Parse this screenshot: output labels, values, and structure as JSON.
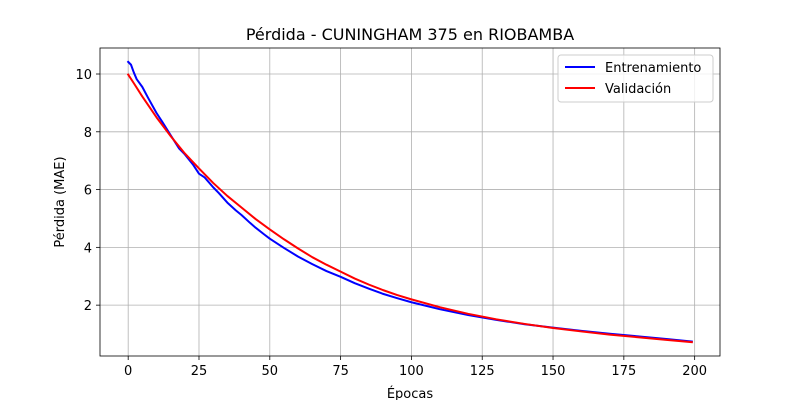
{
  "chart_data": {
    "type": "line",
    "title": "Pérdida - CUNINGHAM 375 en RIOBAMBA",
    "xlabel": "Épocas",
    "ylabel": "Pérdida (MAE)",
    "xlim": [
      -9.95,
      208.95
    ],
    "ylim": [
      0.24,
      10.9
    ],
    "xticks": [
      0,
      25,
      50,
      75,
      100,
      125,
      150,
      175,
      200
    ],
    "yticks": [
      2,
      4,
      6,
      8,
      10
    ],
    "grid": true,
    "legend_position": "upper right",
    "series": [
      {
        "name": "Entrenamiento",
        "color": "#0000ff",
        "x": [
          0,
          1,
          2,
          3,
          5,
          7,
          10,
          12,
          15,
          18,
          20,
          23,
          25,
          27,
          30,
          32,
          35,
          38,
          40,
          43,
          45,
          48,
          50,
          55,
          60,
          65,
          70,
          75,
          80,
          85,
          90,
          95,
          100,
          110,
          120,
          130,
          140,
          150,
          160,
          170,
          180,
          190,
          199
        ],
        "y": [
          10.42,
          10.32,
          10.05,
          9.82,
          9.55,
          9.18,
          8.65,
          8.35,
          7.88,
          7.42,
          7.22,
          6.85,
          6.55,
          6.42,
          6.08,
          5.88,
          5.55,
          5.28,
          5.12,
          4.85,
          4.68,
          4.45,
          4.3,
          3.98,
          3.68,
          3.42,
          3.18,
          2.98,
          2.76,
          2.57,
          2.39,
          2.24,
          2.1,
          1.86,
          1.66,
          1.49,
          1.34,
          1.22,
          1.11,
          1.01,
          0.92,
          0.83,
          0.74
        ]
      },
      {
        "name": "Validación",
        "color": "#ff0000",
        "x": [
          0,
          2,
          5,
          10,
          15,
          20,
          25,
          30,
          35,
          40,
          45,
          50,
          55,
          60,
          65,
          70,
          75,
          80,
          85,
          90,
          95,
          100,
          110,
          120,
          130,
          140,
          150,
          160,
          170,
          180,
          190,
          199
        ],
        "y": [
          9.98,
          9.68,
          9.22,
          8.5,
          7.85,
          7.25,
          6.73,
          6.23,
          5.78,
          5.38,
          4.98,
          4.62,
          4.28,
          3.96,
          3.66,
          3.4,
          3.16,
          2.92,
          2.71,
          2.52,
          2.35,
          2.2,
          1.93,
          1.7,
          1.51,
          1.35,
          1.21,
          1.09,
          0.98,
          0.89,
          0.8,
          0.72
        ]
      }
    ]
  }
}
